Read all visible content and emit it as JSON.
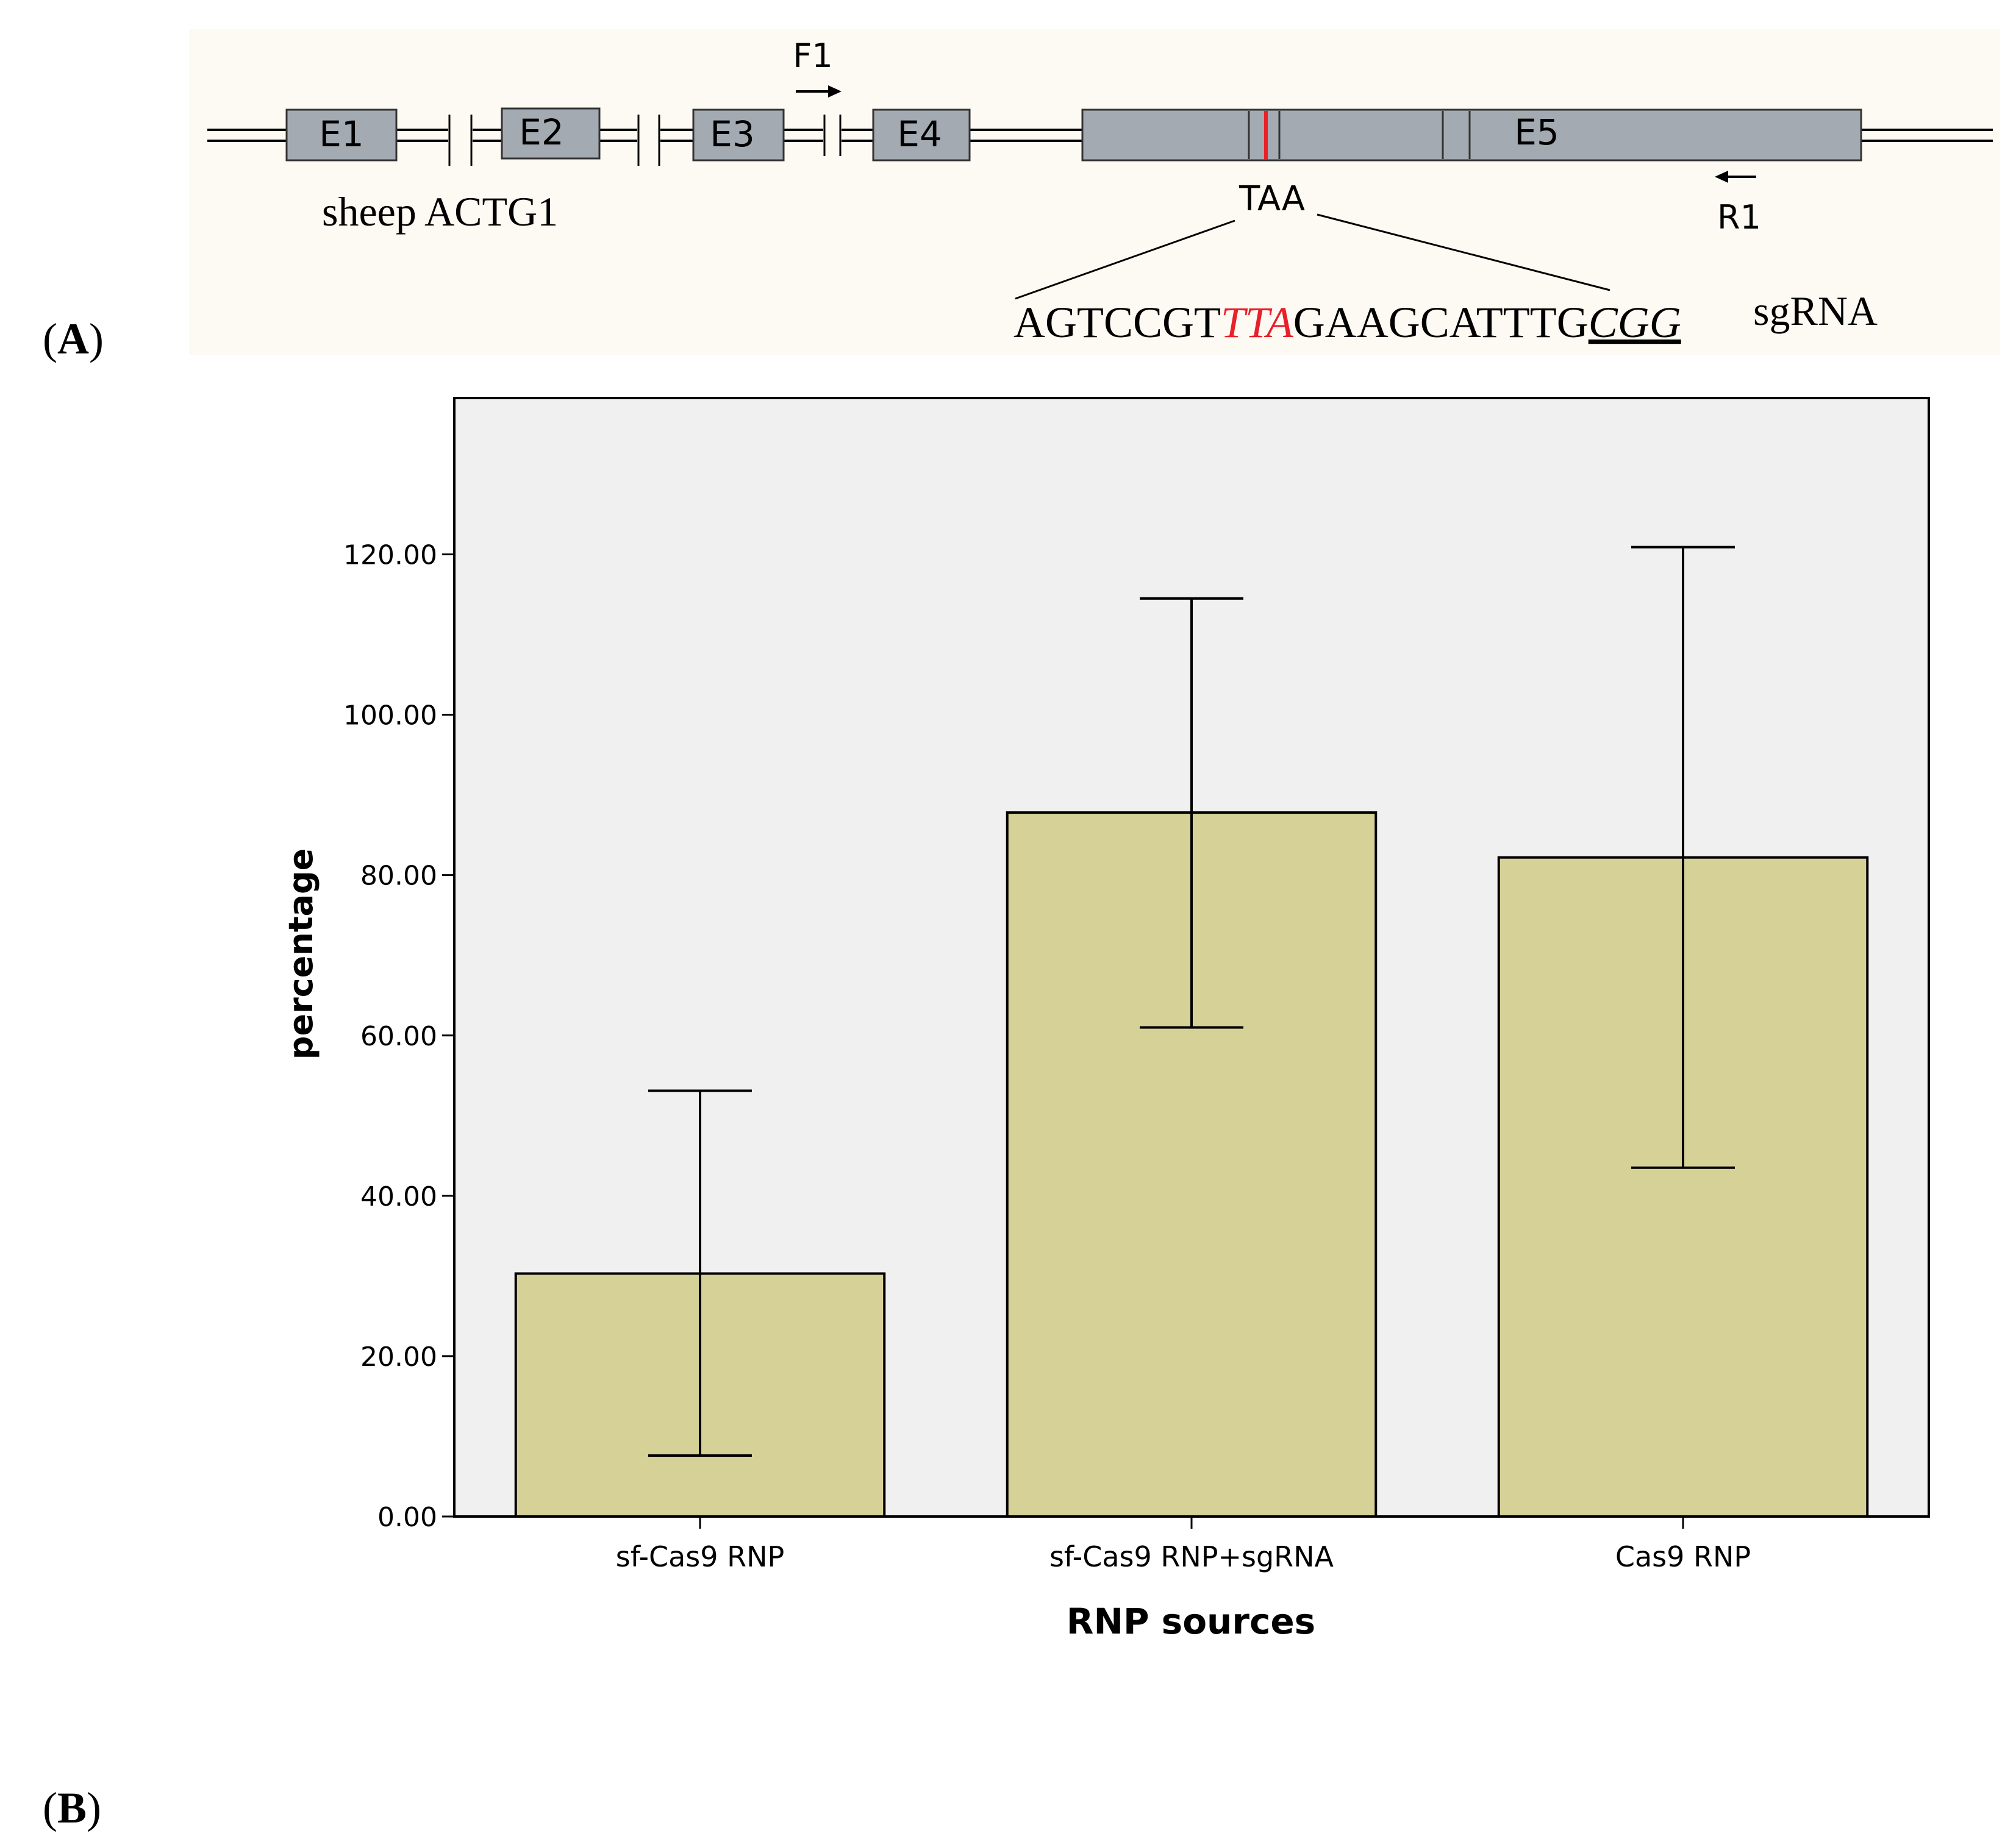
{
  "panel_a": {
    "label_open": "(",
    "label_letter": "A",
    "label_close": ")",
    "gene_name": "sheep ACTG1",
    "exons": [
      "E1",
      "E2",
      "E3",
      "E4",
      "E5"
    ],
    "primer_forward": "F1",
    "primer_reverse": "R1",
    "stop_codon": "TAA",
    "sgrna_prefix": "AGTCCGT",
    "sgrna_highlight": "TTA",
    "sgrna_middle": "GAAGCATTTG",
    "sgrna_pam": "CGG",
    "sgrna_label": "sgRNA",
    "colors": {
      "highlight": "#e8202a",
      "exon_fill": "#a3aab1",
      "panel_bg": "#fdfaf3"
    }
  },
  "panel_b": {
    "label_open": "(",
    "label_letter": "B",
    "label_close": ")"
  },
  "chart_data": {
    "type": "bar",
    "categories": [
      "sf-Cas9 RNP",
      "sf-Cas9 RNP+sgRNA",
      "Cas9 RNP"
    ],
    "values": [
      30.3,
      87.8,
      82.2
    ],
    "error_low": [
      7.6,
      61.0,
      43.5
    ],
    "error_high": [
      53.1,
      114.5,
      120.9
    ],
    "xlabel": "RNP sources",
    "ylabel": "percentage",
    "ylim": [
      0,
      139.5
    ],
    "yticks": [
      "0.00",
      "20.00",
      "40.00",
      "60.00",
      "80.00",
      "100.00",
      "120.00"
    ],
    "ytick_values": [
      0,
      20,
      40,
      60,
      80,
      100,
      120
    ],
    "grid": false,
    "colors": {
      "bar": "#d6d196",
      "plot_bg": "#f0f0f0",
      "axis": "#000000"
    }
  }
}
